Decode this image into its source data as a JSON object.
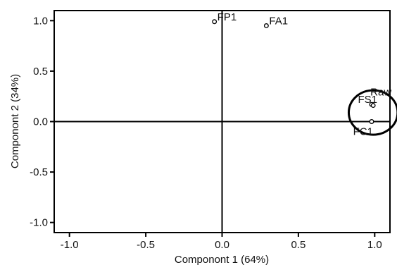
{
  "chart_data": {
    "type": "scatter",
    "xlabel": "Componont 1 (64%)",
    "ylabel": "Componont 2 (34%)",
    "xlim": [
      -1.1,
      1.1
    ],
    "ylim": [
      -1.1,
      1.1
    ],
    "x_ticks": [
      -1.0,
      -0.5,
      0.0,
      0.5,
      1.0
    ],
    "y_ticks": [
      -1.0,
      -0.5,
      0.0,
      0.5,
      1.0
    ],
    "x_tick_labels": [
      "-1.0",
      "-0.5",
      "0.0",
      "0.5",
      "1.0"
    ],
    "y_tick_labels": [
      "-1.0",
      "-0.5",
      "0.0",
      "0.5",
      "1.0"
    ],
    "grid": false,
    "zero_lines": true,
    "points": [
      {
        "label": "FP1",
        "x": -0.05,
        "y": 0.99
      },
      {
        "label": "FA1",
        "x": 0.29,
        "y": 0.95
      },
      {
        "label": "FS1",
        "x": 0.98,
        "y": 0.17
      },
      {
        "label": "Raw",
        "x": 0.99,
        "y": 0.16
      },
      {
        "label": "FC1",
        "x": 0.98,
        "y": 0.0
      }
    ],
    "annotations": [
      {
        "type": "ellipse",
        "cx": 0.99,
        "cy": 0.09,
        "rx": 0.16,
        "ry": 0.22
      }
    ],
    "colors": {
      "axis": "#000000",
      "marker": "#000000",
      "text": "#111111"
    }
  }
}
